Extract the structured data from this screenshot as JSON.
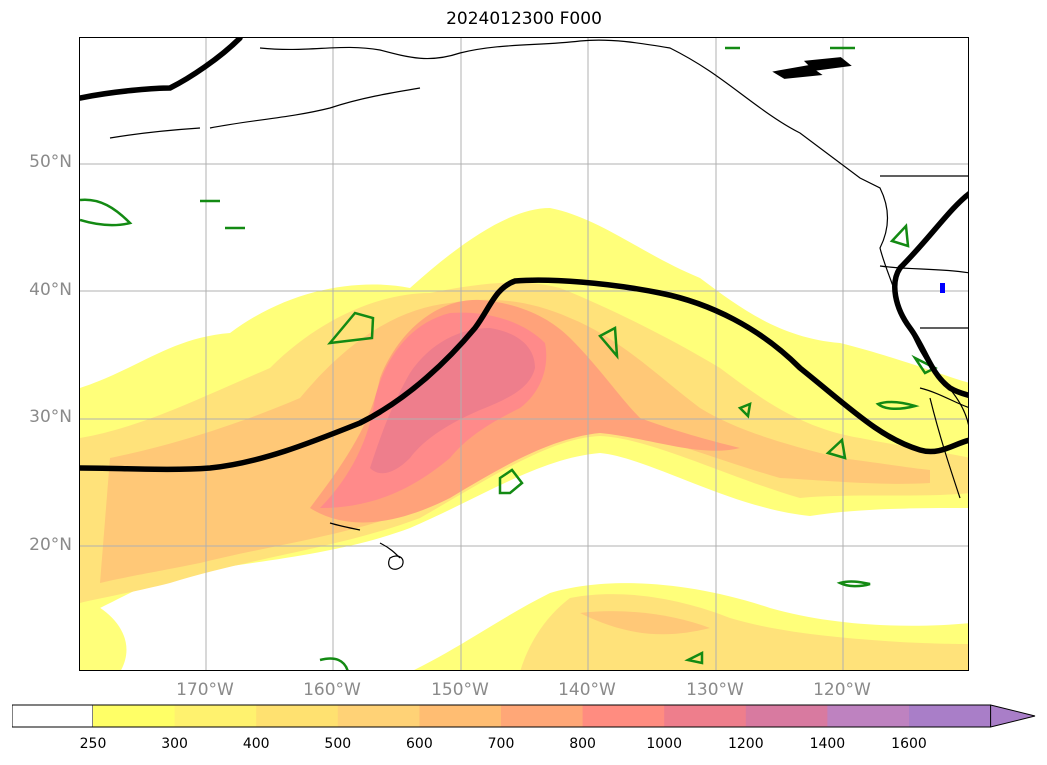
{
  "title": "2024012300 F000",
  "lat_labels": [
    "50°N",
    "40°N",
    "30°N",
    "20°N"
  ],
  "lon_labels": [
    "170°W",
    "160°W",
    "150°W",
    "140°W",
    "130°W",
    "120°W"
  ],
  "colorbar": {
    "ticks": [
      "250",
      "300",
      "400",
      "500",
      "600",
      "700",
      "800",
      "1000",
      "1200",
      "1400",
      "1600"
    ],
    "colors": [
      "#ffff66",
      "#fff26e",
      "#ffe170",
      "#ffd276",
      "#ffbd72",
      "#ffa777",
      "#ff8c80",
      "#ee7e8c",
      "#d87aa0",
      "#be82c0",
      "#a97ec8"
    ],
    "extend": "max"
  },
  "colors": {
    "contour_black": "#000000",
    "contour_green": "#138a13",
    "grid": "#b0b0b0",
    "coast": "#000000"
  }
}
